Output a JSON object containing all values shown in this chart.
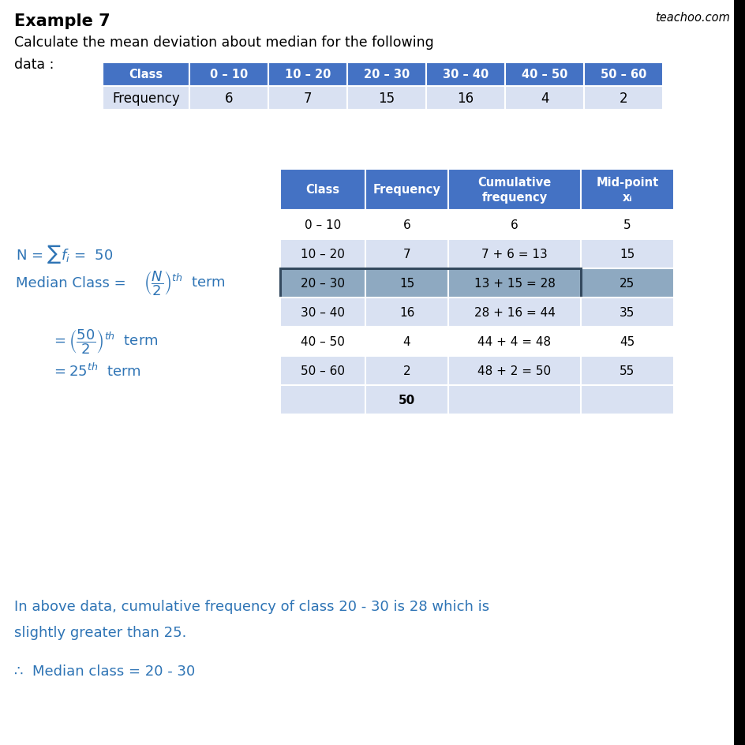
{
  "title": "Example 7",
  "watermark": "teachoo.com",
  "subtitle_line1": "Calculate the mean deviation about median for the following",
  "subtitle_line2": "data :",
  "table1": {
    "headers": [
      "Class",
      "0 – 10",
      "10 – 20",
      "20 – 30",
      "30 – 40",
      "40 – 50",
      "50 – 60"
    ],
    "rows": [
      [
        "Frequency",
        "6",
        "7",
        "15",
        "16",
        "4",
        "2"
      ]
    ],
    "header_bg": "#4472C4",
    "header_fg": "#FFFFFF",
    "row_bg": "#D9E1F2",
    "row_fg": "#000000"
  },
  "table2": {
    "headers": [
      "Class",
      "Frequency",
      "Cumulative\nfrequency",
      "Mid-point\nxᵢ"
    ],
    "rows": [
      [
        "0 – 10",
        "6",
        "6",
        "5"
      ],
      [
        "10 – 20",
        "7",
        "7 + 6 = 13",
        "15"
      ],
      [
        "20 – 30",
        "15",
        "13 + 15 = 28",
        "25"
      ],
      [
        "30 – 40",
        "16",
        "28 + 16 = 44",
        "35"
      ],
      [
        "40 – 50",
        "4",
        "44 + 4 = 48",
        "45"
      ],
      [
        "50 – 60",
        "2",
        "48 + 2 = 50",
        "55"
      ],
      [
        "",
        "50",
        "",
        ""
      ]
    ],
    "header_bg": "#4472C4",
    "header_fg": "#FFFFFF",
    "row_bg_odd": "#FFFFFF",
    "row_bg_even": "#D9E1F2",
    "highlighted_row": 2,
    "highlight_bg": "#8EA9C1",
    "total_row": 6,
    "total_row_bg": "#D9E1F2"
  },
  "text_color": "#2E74B5",
  "black_color": "#000000",
  "conclusion_line1": "In above data, cumulative frequency of class 20 - 30 is 28 which is",
  "conclusion_line2": "slightly greater than 25.",
  "conclusion_line3": "∴  Median class = 20 - 30"
}
